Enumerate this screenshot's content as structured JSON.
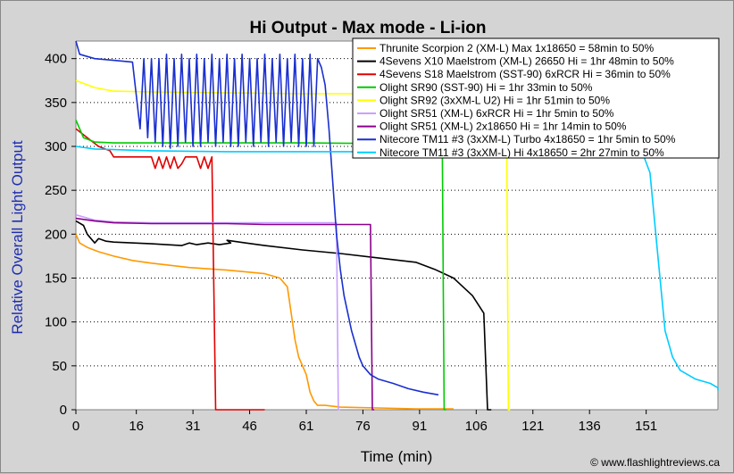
{
  "chart_data": {
    "type": "line",
    "title": "Hi Output - Max mode - Li-ion",
    "xlabel": "Time (min)",
    "ylabel": "Relative Overall Light Output",
    "credit": "© www.flashlightreviews.ca",
    "xlim": [
      0,
      170
    ],
    "ylim": [
      0,
      420
    ],
    "x_ticks": [
      0,
      16,
      31,
      46,
      61,
      76,
      91,
      106,
      121,
      136,
      151
    ],
    "y_ticks": [
      0,
      50,
      100,
      150,
      200,
      250,
      300,
      350,
      400
    ],
    "grid": "horizontal",
    "legend": "top-right",
    "series": [
      {
        "name": "Thrunite Scorpion 2 (XM-L) Max 1x18650 = 58min to 50%",
        "color": "#ff9900",
        "x": [
          0,
          1,
          3,
          6,
          10,
          15,
          20,
          30,
          40,
          50,
          54,
          56,
          57,
          58,
          59,
          60,
          61,
          62,
          63,
          64,
          66,
          70,
          80,
          90,
          100
        ],
        "y": [
          200,
          190,
          185,
          180,
          175,
          170,
          167,
          162,
          159,
          155,
          150,
          140,
          110,
          80,
          60,
          50,
          40,
          20,
          10,
          5,
          5,
          3,
          2,
          1,
          1
        ]
      },
      {
        "name": "4Sevens X10 Maelstrom (XM-L) 26650 Hi = 1hr 48min to 50%",
        "color": "#000000",
        "x": [
          0,
          2,
          3,
          4,
          5,
          6,
          8,
          10,
          20,
          28,
          30,
          32,
          35,
          38,
          41,
          40,
          45,
          50,
          60,
          70,
          80,
          90,
          95,
          100,
          105,
          108,
          109,
          110
        ],
        "y": [
          215,
          210,
          200,
          195,
          190,
          195,
          192,
          191,
          189,
          187,
          190,
          188,
          190,
          188,
          190,
          193,
          190,
          187,
          182,
          178,
          173,
          168,
          160,
          150,
          130,
          110,
          0,
          0
        ]
      },
      {
        "name": "4Sevens S18 Maelstrom (SST-90) 6xRCR Hi = 36min to 50%",
        "color": "#e00000",
        "x": [
          0,
          3,
          6,
          9,
          10,
          12,
          20,
          21,
          22,
          23,
          24,
          25,
          26,
          27,
          28,
          29,
          30,
          32,
          33,
          34,
          35,
          36,
          37,
          37.5,
          38,
          50
        ],
        "y": [
          320,
          310,
          300,
          295,
          288,
          288,
          288,
          275,
          288,
          275,
          288,
          275,
          288,
          275,
          280,
          288,
          288,
          288,
          275,
          288,
          275,
          288,
          0,
          0,
          0,
          0
        ]
      },
      {
        "name": "Olight SR90 (SST-90) Hi = 1hr 33min to 50%",
        "color": "#00cc00",
        "x": [
          0,
          2,
          5,
          10,
          30,
          60,
          90,
          97,
          97.5,
          98
        ],
        "y": [
          330,
          310,
          305,
          304,
          304,
          304,
          303,
          303,
          0,
          0
        ]
      },
      {
        "name": "Olight SR92 (3xXM-L U2) Hi = 1hr 51min to 50%",
        "color": "#ffff00",
        "x": [
          0,
          5,
          10,
          20,
          40,
          60,
          80,
          100,
          110,
          114,
          114.5,
          115
        ],
        "y": [
          375,
          367,
          363,
          362,
          361,
          360,
          360,
          360,
          360,
          360,
          0,
          0
        ]
      },
      {
        "name": "Olight SR51 (XM-L) 6xRCR Hi = 1hr 5min to 50%",
        "color": "#c8a0ff",
        "x": [
          0,
          5,
          10,
          20,
          30,
          40,
          50,
          60,
          65,
          69,
          69.5,
          70
        ],
        "y": [
          222,
          216,
          214,
          213,
          213,
          213,
          213,
          213,
          213,
          213,
          0,
          0
        ]
      },
      {
        "name": "Olight SR51 (XM-L) 2x18650 Hi = 1hr 14min to 50%",
        "color": "#8b008b",
        "x": [
          0,
          5,
          10,
          20,
          30,
          40,
          50,
          60,
          70,
          78,
          78.5,
          79
        ],
        "y": [
          218,
          215,
          213,
          212,
          212,
          212,
          211,
          211,
          211,
          211,
          0,
          0
        ]
      },
      {
        "name": "Nitecore TM11 #3 (3xXM-L) Turbo 4x18650 = 1hr 5min to 50%",
        "color": "#1a2fd0",
        "x": [
          0,
          1,
          5,
          10,
          15,
          17,
          18,
          19,
          20,
          21,
          22,
          23,
          24,
          25,
          26,
          27,
          28,
          29,
          30,
          31,
          32,
          33,
          34,
          35,
          36,
          37,
          38,
          39,
          40,
          41,
          42,
          43,
          44,
          45,
          46,
          47,
          48,
          49,
          50,
          51,
          52,
          53,
          54,
          55,
          56,
          57,
          58,
          59,
          60,
          61,
          62,
          63,
          64,
          65,
          66,
          67,
          68,
          69,
          70,
          71,
          72,
          73,
          74,
          75,
          76,
          78,
          80,
          84,
          88,
          92,
          96
        ],
        "y": [
          420,
          405,
          400,
          398,
          396,
          320,
          400,
          310,
          400,
          305,
          400,
          300,
          405,
          298,
          400,
          300,
          405,
          305,
          400,
          300,
          405,
          300,
          400,
          305,
          405,
          300,
          400,
          305,
          405,
          300,
          400,
          300,
          405,
          305,
          400,
          300,
          400,
          305,
          405,
          300,
          400,
          305,
          405,
          300,
          400,
          305,
          405,
          300,
          400,
          300,
          405,
          300,
          400,
          390,
          370,
          320,
          260,
          200,
          160,
          130,
          110,
          90,
          75,
          60,
          50,
          40,
          35,
          30,
          24,
          20,
          17
        ]
      },
      {
        "name": "Nitecore TM11 #3 (3xXM-L) Hi 4x18650 = 2hr 27min to 50%",
        "color": "#00ccff",
        "x": [
          0,
          5,
          20,
          40,
          60,
          80,
          100,
          120,
          140,
          150,
          152,
          154,
          156,
          158,
          160,
          164,
          168,
          172,
          176
        ],
        "y": [
          300,
          297,
          295,
          294,
          294,
          294,
          294,
          294,
          294,
          293,
          270,
          180,
          90,
          60,
          45,
          35,
          30,
          25,
          22
        ]
      }
    ]
  }
}
